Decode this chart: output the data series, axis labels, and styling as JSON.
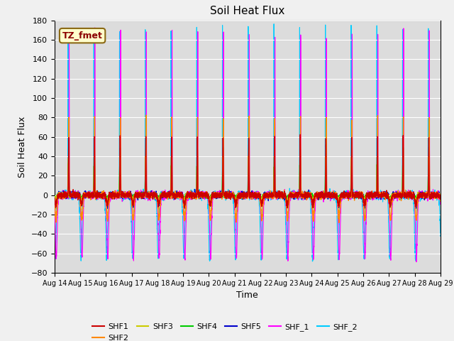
{
  "title": "Soil Heat Flux",
  "xlabel": "Time",
  "ylabel": "Soil Heat Flux",
  "ylim": [
    -80,
    180
  ],
  "yticks": [
    -80,
    -60,
    -40,
    -20,
    0,
    20,
    40,
    60,
    80,
    100,
    120,
    140,
    160,
    180
  ],
  "start_day": 14,
  "end_day": 29,
  "num_days": 15,
  "colors": {
    "SHF1": "#cc0000",
    "SHF2": "#ff8800",
    "SHF3": "#cccc00",
    "SHF4": "#00cc00",
    "SHF5": "#0000cc",
    "SHF_1": "#ff00ff",
    "SHF_2": "#00ccff"
  },
  "legend_labels": [
    "SHF1",
    "SHF2",
    "SHF3",
    "SHF4",
    "SHF5",
    "SHF_1",
    "SHF_2"
  ],
  "annotation_text": "TZ_fmet",
  "plot_bg_color": "#dcdcdc",
  "fig_bg_color": "#f0f0f0"
}
